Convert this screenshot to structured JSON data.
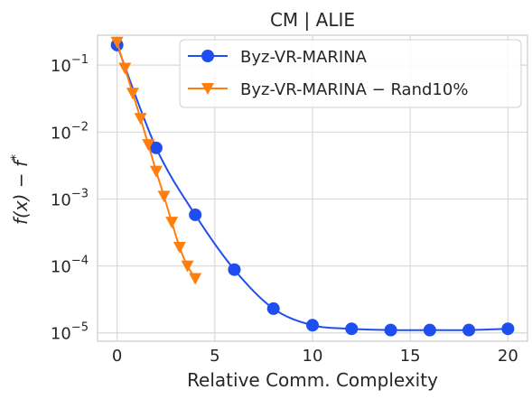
{
  "chart_data": {
    "type": "line",
    "title": "CM | ALIE",
    "xlabel": "Relative Comm. Complexity",
    "ylabel": "f(x) − f*",
    "xlim": [
      -1.0,
      21.0
    ],
    "ylim": [
      7.5e-06,
      0.28
    ],
    "yscale": "log",
    "grid": true,
    "legend_position": "top-right",
    "x_ticks": [
      0,
      5,
      10,
      15,
      20
    ],
    "y_ticks": [
      {
        "value": 1e-05,
        "base": "10",
        "exp": "−5"
      },
      {
        "value": 0.0001,
        "base": "10",
        "exp": "−4"
      },
      {
        "value": 0.001,
        "base": "10",
        "exp": "−3"
      },
      {
        "value": 0.01,
        "base": "10",
        "exp": "−2"
      },
      {
        "value": 0.1,
        "base": "10",
        "exp": "−1"
      }
    ],
    "series": [
      {
        "name": "Byz-VR-MARINA",
        "color": "#1f4ef0",
        "marker": "circle",
        "x": [
          0,
          2,
          4,
          6,
          8,
          10,
          12,
          14,
          16,
          18,
          20
        ],
        "y": [
          0.2,
          0.0058,
          0.00058,
          8.8e-05,
          2.3e-05,
          1.3e-05,
          1.15e-05,
          1.1e-05,
          1.1e-05,
          1.1e-05,
          1.15e-05
        ]
      },
      {
        "name": "Byz-VR-MARINA − Rand10%",
        "color": "#ff7f0e",
        "marker": "triangle-down",
        "x": [
          0,
          0.4,
          0.8,
          1.2,
          1.6,
          2.0,
          2.4,
          2.8,
          3.2,
          3.6,
          4.0
        ],
        "y": [
          0.22,
          0.09,
          0.038,
          0.016,
          0.0065,
          0.0026,
          0.0011,
          0.00045,
          0.00019,
          0.0001,
          6.5e-05
        ]
      }
    ]
  }
}
